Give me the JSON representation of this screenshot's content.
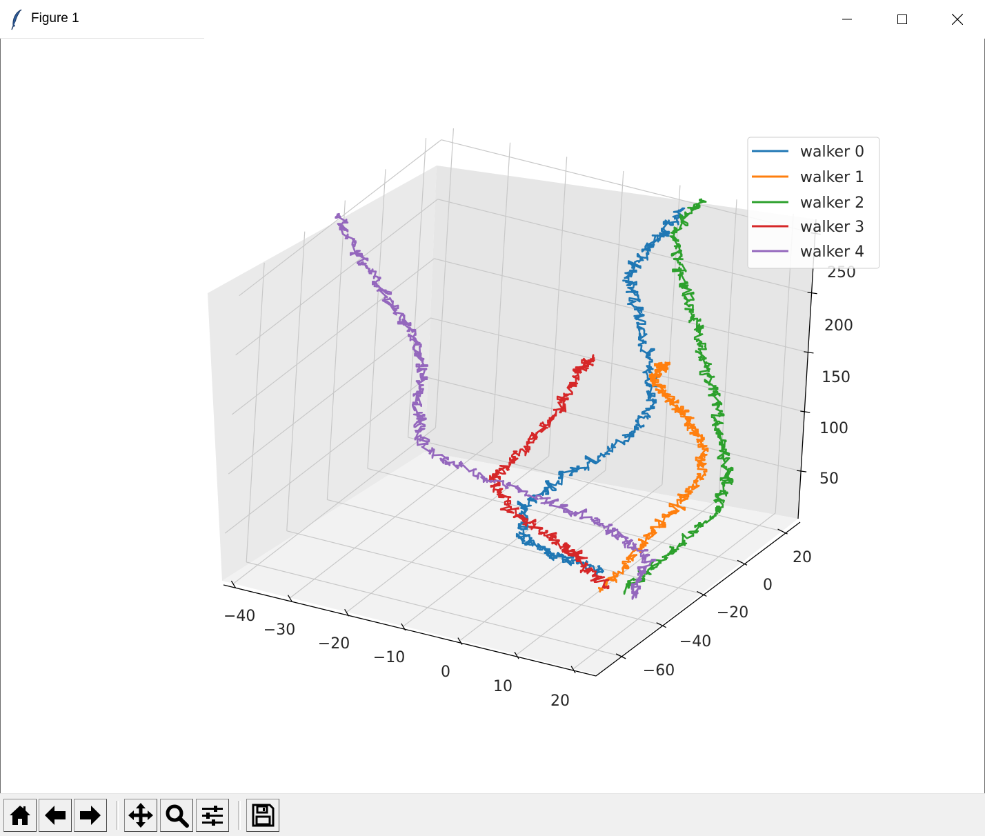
{
  "window": {
    "title": "Figure 1",
    "controls": [
      "minimize-icon",
      "maximize-icon",
      "close-icon"
    ]
  },
  "chart_data": {
    "type": "line",
    "projection": "3d",
    "title": "",
    "xlabel": "",
    "ylabel": "",
    "zlabel": "",
    "xlim": [
      -42,
      24
    ],
    "ylim": [
      -72,
      28
    ],
    "zlim": [
      10,
      262
    ],
    "xticks": [
      "−40",
      "−30",
      "−20",
      "−10",
      "0",
      "10",
      "20"
    ],
    "yticks": [
      "−60",
      "−40",
      "−20",
      "0",
      "20"
    ],
    "zticks": [
      "50",
      "100",
      "150",
      "200",
      "250"
    ],
    "grid": true,
    "legend": {
      "location": "upper right",
      "entries": [
        "walker 0",
        "walker 1",
        "walker 2",
        "walker 3",
        "walker 4"
      ]
    },
    "series": [
      {
        "name": "walker 0",
        "color": "#1f77b4",
        "points": [
          [
            10,
            -30,
            25
          ],
          [
            6,
            -40,
            45
          ],
          [
            2,
            -48,
            65
          ],
          [
            0,
            -44,
            85
          ],
          [
            4,
            -36,
            105
          ],
          [
            10,
            -26,
            125
          ],
          [
            12,
            -16,
            145
          ],
          [
            8,
            -6,
            165
          ],
          [
            2,
            4,
            190
          ],
          [
            -2,
            10,
            210
          ],
          [
            0,
            18,
            230
          ],
          [
            2,
            24,
            250
          ]
        ]
      },
      {
        "name": "walker 1",
        "color": "#ff7f0e",
        "points": [
          [
            12,
            -36,
            20
          ],
          [
            14,
            -26,
            40
          ],
          [
            16,
            -16,
            60
          ],
          [
            18,
            -6,
            80
          ],
          [
            16,
            0,
            100
          ],
          [
            14,
            -2,
            120
          ],
          [
            12,
            -6,
            140
          ],
          [
            10,
            -10,
            160
          ],
          [
            12,
            -12,
            175
          ],
          [
            14,
            -16,
            185
          ]
        ]
      },
      {
        "name": "walker 2",
        "color": "#2ca02c",
        "points": [
          [
            14,
            -30,
            15
          ],
          [
            18,
            -22,
            35
          ],
          [
            22,
            -10,
            60
          ],
          [
            22,
            -4,
            85
          ],
          [
            20,
            -2,
            110
          ],
          [
            18,
            0,
            135
          ],
          [
            14,
            4,
            160
          ],
          [
            10,
            10,
            185
          ],
          [
            6,
            14,
            210
          ],
          [
            2,
            20,
            235
          ],
          [
            4,
            28,
            255
          ]
        ]
      },
      {
        "name": "walker 3",
        "color": "#d62728",
        "points": [
          [
            12,
            -34,
            20
          ],
          [
            8,
            -36,
            40
          ],
          [
            4,
            -40,
            60
          ],
          [
            -2,
            -44,
            80
          ],
          [
            -6,
            -42,
            100
          ],
          [
            -4,
            -32,
            115
          ],
          [
            -2,
            -22,
            135
          ],
          [
            -2,
            -14,
            155
          ],
          [
            0,
            -12,
            170
          ]
        ]
      },
      {
        "name": "walker 4",
        "color": "#9467bd",
        "points": [
          [
            16,
            -32,
            15
          ],
          [
            16,
            -24,
            35
          ],
          [
            10,
            -26,
            55
          ],
          [
            2,
            -32,
            75
          ],
          [
            -8,
            -40,
            95
          ],
          [
            -18,
            -44,
            115
          ],
          [
            -22,
            -36,
            135
          ],
          [
            -24,
            -28,
            155
          ],
          [
            -28,
            -24,
            175
          ],
          [
            -32,
            -24,
            195
          ],
          [
            -38,
            -22,
            220
          ],
          [
            -44,
            -18,
            245
          ]
        ]
      }
    ]
  },
  "toolbar": {
    "buttons": [
      {
        "name": "home-button",
        "icon": "home-icon"
      },
      {
        "name": "back-button",
        "icon": "arrow-left-icon"
      },
      {
        "name": "forward-button",
        "icon": "arrow-right-icon"
      },
      {
        "name": "pan-button",
        "icon": "move-icon"
      },
      {
        "name": "zoom-button",
        "icon": "magnifier-icon"
      },
      {
        "name": "configure-subplots-button",
        "icon": "sliders-icon"
      },
      {
        "name": "save-button",
        "icon": "floppy-disk-icon"
      }
    ]
  }
}
